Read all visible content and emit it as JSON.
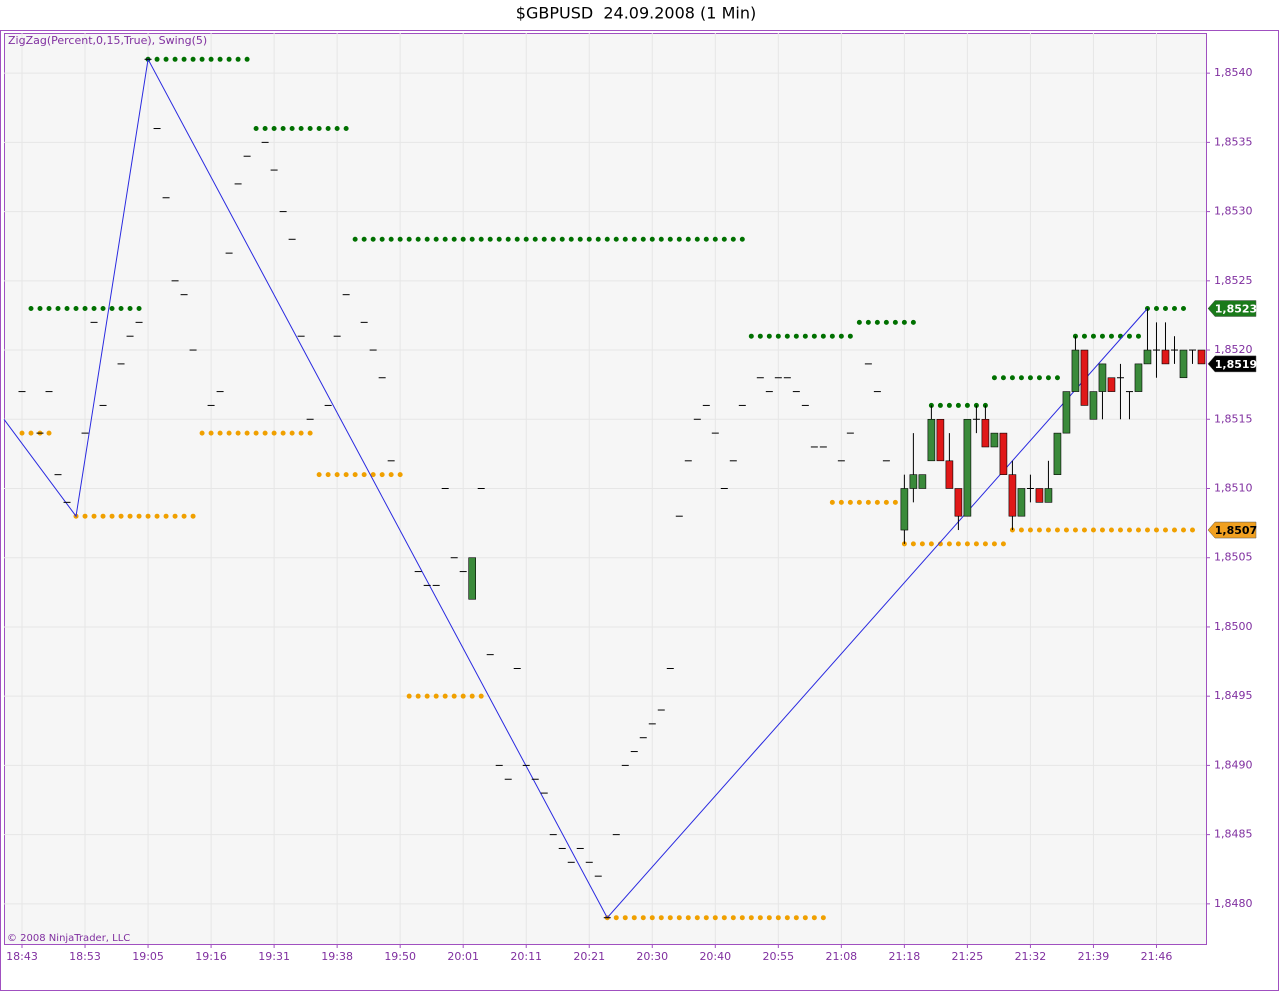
{
  "chart_data": {
    "type": "candlestick",
    "title": "$GBPUSD  24.09.2008 (1 Min)",
    "indicator_label": "ZigZag(Percent,0,15,True), Swing(5)",
    "copyright": "© 2008 NinjaTrader, LLC",
    "x": [
      0,
      2,
      3,
      4,
      5,
      7,
      8,
      9,
      11,
      12,
      13,
      14,
      15,
      16,
      17,
      18,
      19,
      21,
      22,
      23,
      24,
      25,
      27,
      28,
      29,
      30,
      31,
      32,
      34,
      35,
      36,
      38,
      39,
      40,
      41,
      44,
      45,
      46,
      47,
      48,
      49,
      50,
      51,
      52,
      53,
      54,
      55,
      56,
      57,
      58,
      59,
      60,
      61,
      62,
      63,
      64,
      65,
      66,
      67,
      68,
      69,
      70,
      71,
      72,
      73,
      74,
      75,
      76,
      77,
      78,
      79,
      80,
      82,
      83,
      84,
      85,
      86,
      87,
      88,
      89,
      91,
      92,
      94,
      95,
      96,
      98,
      99,
      100,
      101,
      102,
      103,
      104,
      105,
      106,
      107,
      108,
      109,
      110,
      111,
      112,
      113,
      114,
      115,
      116,
      117,
      118,
      119,
      120,
      121,
      122,
      123,
      124,
      125,
      126,
      127,
      128,
      129,
      130,
      131
    ],
    "open": [
      1.8517,
      1.8514,
      1.8517,
      1.8511,
      1.8509,
      1.8514,
      1.8522,
      1.8516,
      1.8519,
      1.8521,
      1.8522,
      1.8541,
      1.8536,
      1.8531,
      1.8525,
      1.8524,
      1.852,
      1.8516,
      1.8517,
      1.8527,
      1.8532,
      1.8534,
      1.8535,
      1.8533,
      1.853,
      1.8528,
      1.8521,
      1.8515,
      1.8516,
      1.8521,
      1.8524,
      1.8522,
      1.852,
      1.8518,
      1.8512,
      1.8504,
      1.8503,
      1.8503,
      1.851,
      1.8505,
      1.8504,
      1.8502,
      1.851,
      1.8498,
      1.849,
      1.8489,
      1.8497,
      1.849,
      1.8489,
      1.8488,
      1.8485,
      1.8484,
      1.8483,
      1.8484,
      1.8483,
      1.8482,
      1.8479,
      1.8485,
      1.849,
      1.8491,
      1.8492,
      1.8493,
      1.8494,
      1.8497,
      1.8508,
      1.8512,
      1.8515,
      1.8516,
      1.8514,
      1.851,
      1.8512,
      1.8516,
      1.8518,
      1.8517,
      1.8518,
      1.8518,
      1.8517,
      1.8516,
      1.8513,
      1.8513,
      1.8512,
      1.8514,
      1.8519,
      1.8517,
      1.8512,
      1.8507,
      1.851,
      1.851,
      1.8512,
      1.8515,
      1.8512,
      1.851,
      1.8508,
      1.8515,
      1.8515,
      1.8513,
      1.8514,
      1.8511,
      1.8508,
      1.851,
      1.851,
      1.8509,
      1.8511,
      1.8514,
      1.8517,
      1.852,
      1.8515,
      1.8517,
      1.8518,
      1.8518,
      1.8517,
      1.8517,
      1.8519,
      1.852,
      1.852,
      1.852,
      1.8518,
      1.852,
      1.852
    ],
    "high": [
      1.8517,
      1.8514,
      1.8517,
      1.8511,
      1.8509,
      1.8514,
      1.8522,
      1.8516,
      1.8519,
      1.8521,
      1.8522,
      1.8541,
      1.8536,
      1.8531,
      1.8525,
      1.8524,
      1.852,
      1.8516,
      1.8517,
      1.8527,
      1.8532,
      1.8534,
      1.8535,
      1.8533,
      1.853,
      1.8528,
      1.8521,
      1.8515,
      1.8516,
      1.8521,
      1.8524,
      1.8522,
      1.852,
      1.8518,
      1.8512,
      1.8504,
      1.8503,
      1.8503,
      1.851,
      1.8505,
      1.8504,
      1.8505,
      1.851,
      1.8498,
      1.849,
      1.8489,
      1.8497,
      1.849,
      1.8489,
      1.8488,
      1.8485,
      1.8484,
      1.8483,
      1.8484,
      1.8483,
      1.8482,
      1.8479,
      1.8485,
      1.849,
      1.8491,
      1.8492,
      1.8493,
      1.8494,
      1.8497,
      1.8508,
      1.8512,
      1.8515,
      1.8516,
      1.8514,
      1.851,
      1.8512,
      1.8516,
      1.8518,
      1.8517,
      1.8518,
      1.8518,
      1.8517,
      1.8516,
      1.8513,
      1.8513,
      1.8512,
      1.8514,
      1.8519,
      1.8517,
      1.8512,
      1.8511,
      1.8514,
      1.8511,
      1.8516,
      1.8515,
      1.8514,
      1.851,
      1.8515,
      1.8516,
      1.8516,
      1.8514,
      1.8514,
      1.8512,
      1.851,
      1.8511,
      1.851,
      1.8512,
      1.8514,
      1.8517,
      1.8521,
      1.852,
      1.8517,
      1.8519,
      1.8518,
      1.8519,
      1.8517,
      1.8519,
      1.8523,
      1.8522,
      1.8522,
      1.8521,
      1.852,
      1.852,
      1.852
    ],
    "low": [
      1.8517,
      1.8514,
      1.8517,
      1.8511,
      1.8509,
      1.8514,
      1.8522,
      1.8516,
      1.8519,
      1.8521,
      1.8522,
      1.8541,
      1.8536,
      1.8531,
      1.8525,
      1.8524,
      1.852,
      1.8516,
      1.8517,
      1.8527,
      1.8532,
      1.8534,
      1.8535,
      1.8533,
      1.853,
      1.8528,
      1.8521,
      1.8515,
      1.8516,
      1.8521,
      1.8524,
      1.8522,
      1.852,
      1.8518,
      1.8512,
      1.8504,
      1.8503,
      1.8503,
      1.851,
      1.8505,
      1.8504,
      1.8502,
      1.851,
      1.8498,
      1.849,
      1.8489,
      1.8497,
      1.849,
      1.8489,
      1.8488,
      1.8485,
      1.8484,
      1.8483,
      1.8484,
      1.8483,
      1.8482,
      1.8479,
      1.8485,
      1.849,
      1.8491,
      1.8492,
      1.8493,
      1.8494,
      1.8497,
      1.8508,
      1.8512,
      1.8515,
      1.8516,
      1.8514,
      1.851,
      1.8512,
      1.8516,
      1.8518,
      1.8517,
      1.8518,
      1.8518,
      1.8517,
      1.8516,
      1.8513,
      1.8513,
      1.8512,
      1.8514,
      1.8519,
      1.8517,
      1.8512,
      1.8506,
      1.8509,
      1.851,
      1.8512,
      1.8512,
      1.851,
      1.8507,
      1.8508,
      1.8514,
      1.8513,
      1.8513,
      1.8511,
      1.8507,
      1.8508,
      1.8509,
      1.8509,
      1.8509,
      1.8511,
      1.8514,
      1.8517,
      1.8516,
      1.8515,
      1.8515,
      1.8517,
      1.8515,
      1.8515,
      1.8517,
      1.8519,
      1.8518,
      1.8519,
      1.8519,
      1.8518,
      1.8519,
      1.8519
    ],
    "close": [
      1.8517,
      1.8514,
      1.8517,
      1.8511,
      1.8509,
      1.8514,
      1.8522,
      1.8516,
      1.8519,
      1.8521,
      1.8522,
      1.8541,
      1.8536,
      1.8531,
      1.8525,
      1.8524,
      1.852,
      1.8516,
      1.8517,
      1.8527,
      1.8532,
      1.8534,
      1.8535,
      1.8533,
      1.853,
      1.8528,
      1.8521,
      1.8515,
      1.8516,
      1.8521,
      1.8524,
      1.8522,
      1.852,
      1.8518,
      1.8512,
      1.8504,
      1.8503,
      1.8503,
      1.851,
      1.8505,
      1.8504,
      1.8505,
      1.851,
      1.8498,
      1.849,
      1.8489,
      1.8497,
      1.849,
      1.8489,
      1.8488,
      1.8485,
      1.8484,
      1.8483,
      1.8484,
      1.8483,
      1.8482,
      1.8479,
      1.8485,
      1.849,
      1.8491,
      1.8492,
      1.8493,
      1.8494,
      1.8497,
      1.8508,
      1.8512,
      1.8515,
      1.8516,
      1.8514,
      1.851,
      1.8512,
      1.8516,
      1.8518,
      1.8517,
      1.8518,
      1.8518,
      1.8517,
      1.8516,
      1.8513,
      1.8513,
      1.8512,
      1.8514,
      1.8519,
      1.8517,
      1.8512,
      1.851,
      1.8511,
      1.8511,
      1.8515,
      1.8512,
      1.851,
      1.8508,
      1.8515,
      1.8515,
      1.8513,
      1.8514,
      1.8511,
      1.8508,
      1.851,
      1.851,
      1.8509,
      1.851,
      1.8514,
      1.8517,
      1.852,
      1.8516,
      1.8517,
      1.8519,
      1.8517,
      1.8518,
      1.8517,
      1.8519,
      1.852,
      1.852,
      1.8519,
      1.852,
      1.852,
      1.852,
      1.8519
    ],
    "up_color": "#3a8a3a",
    "down_color": "#e01818",
    "doji_color": "#000000",
    "zigzag": {
      "color": "#2a2ae0",
      "x": [
        -2,
        6,
        14,
        65,
        125
      ],
      "values": [
        1.8515,
        1.8508,
        1.8541,
        1.8479,
        1.8523
      ]
    },
    "swing_highs": {
      "color": "#007000",
      "start": [
        1,
        14,
        26,
        37,
        81,
        93,
        101,
        108,
        117,
        125
      ],
      "end": [
        13,
        25,
        36,
        80,
        92,
        100,
        107,
        116,
        124,
        130
      ],
      "values": [
        1.8523,
        1.8541,
        1.8536,
        1.8528,
        1.8521,
        1.8522,
        1.8516,
        1.8518,
        1.8521,
        1.8523
      ]
    },
    "swing_lows": {
      "color": "#f0a000",
      "start": [
        0,
        6,
        20,
        33,
        43,
        65,
        90,
        98,
        110
      ],
      "end": [
        3,
        19,
        32,
        42,
        52,
        89,
        97,
        109,
        130
      ],
      "values": [
        1.8514,
        1.8508,
        1.8514,
        1.8511,
        1.8495,
        1.8479,
        1.8509,
        1.8506,
        1.8507
      ]
    },
    "price_markers": [
      {
        "value": 1.8523,
        "label": "1,8523",
        "color": "#1a7a1a",
        "text_color": "#ffffff"
      },
      {
        "value": 1.8519,
        "label": "1,8519",
        "color": "#000000",
        "text_color": "#ffffff"
      },
      {
        "value": 1.8507,
        "label": "1,8507",
        "color": "#f0a020",
        "text_color": "#000000"
      }
    ],
    "xlim": [
      -2,
      131.5
    ],
    "xticks": [
      {
        "value": 0,
        "label": "18:43"
      },
      {
        "value": 7,
        "label": "18:53"
      },
      {
        "value": 14,
        "label": "19:05"
      },
      {
        "value": 21,
        "label": "19:16"
      },
      {
        "value": 28,
        "label": "19:31"
      },
      {
        "value": 35,
        "label": "19:38"
      },
      {
        "value": 42,
        "label": "19:50"
      },
      {
        "value": 49,
        "label": "20:01"
      },
      {
        "value": 56,
        "label": "20:11"
      },
      {
        "value": 63,
        "label": "20:21"
      },
      {
        "value": 70,
        "label": "20:30"
      },
      {
        "value": 77,
        "label": "20:40"
      },
      {
        "value": 84,
        "label": "20:55"
      },
      {
        "value": 91,
        "label": "21:08"
      },
      {
        "value": 98,
        "label": "21:18"
      },
      {
        "value": 105,
        "label": "21:25"
      },
      {
        "value": 112,
        "label": "21:32"
      },
      {
        "value": 119,
        "label": "21:39"
      },
      {
        "value": 126,
        "label": "21:46"
      }
    ],
    "ylim": [
      1.84771,
      1.85429
    ],
    "yticks": [
      {
        "value": 1.848,
        "label": "1,8480"
      },
      {
        "value": 1.8485,
        "label": "1,8485"
      },
      {
        "value": 1.849,
        "label": "1,8490"
      },
      {
        "value": 1.8495,
        "label": "1,8495"
      },
      {
        "value": 1.85,
        "label": "1,8500"
      },
      {
        "value": 1.8505,
        "label": "1,8505"
      },
      {
        "value": 1.851,
        "label": "1,8510"
      },
      {
        "value": 1.8515,
        "label": "1,8515"
      },
      {
        "value": 1.852,
        "label": "1,8520"
      },
      {
        "value": 1.8525,
        "label": "1,8525"
      },
      {
        "value": 1.853,
        "label": "1,8530"
      },
      {
        "value": 1.8535,
        "label": "1,8535"
      },
      {
        "value": 1.854,
        "label": "1,8540"
      }
    ],
    "grid": true
  }
}
